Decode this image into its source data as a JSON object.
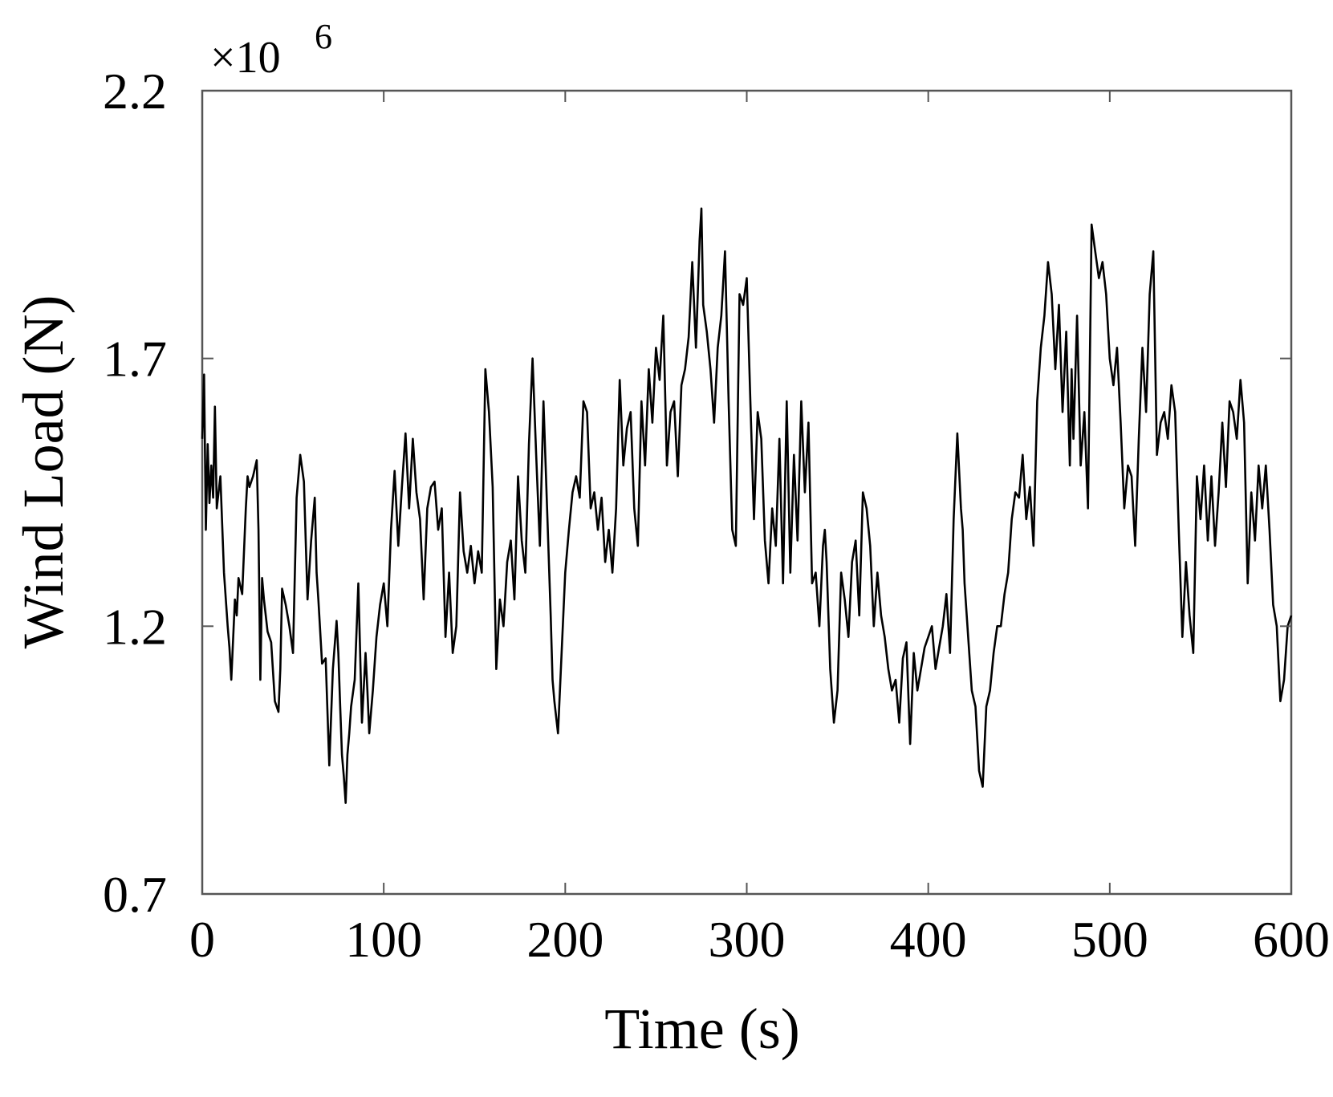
{
  "chart_data": {
    "type": "line",
    "title": "",
    "xlabel": "Time (s)",
    "ylabel": "Wind Load (N)",
    "exponent_label": "×10",
    "exponent_power": "6",
    "xlim": [
      0,
      600
    ],
    "ylim": [
      0.7,
      2.2
    ],
    "xticks": [
      0,
      100,
      200,
      300,
      400,
      500,
      600
    ],
    "xtick_labels": [
      "0",
      "100",
      "200",
      "300",
      "400",
      "500",
      "600"
    ],
    "yticks": [
      0.7,
      1.2,
      1.7,
      2.2
    ],
    "ytick_labels": [
      "0.7",
      "1.2",
      "1.7",
      "2.2"
    ],
    "grid": false,
    "colors": {
      "line": "#000000",
      "axes": "#555555"
    },
    "series": [
      {
        "x": [
          0,
          1,
          2,
          3,
          4,
          5,
          6,
          7,
          8,
          10,
          12,
          14,
          15,
          16,
          18,
          19,
          20,
          22,
          24,
          25,
          26,
          28,
          30,
          31,
          32,
          33,
          34,
          36,
          38,
          40,
          42,
          43,
          44,
          46,
          48,
          50,
          52,
          54,
          56,
          58,
          60,
          62,
          63,
          64,
          66,
          68,
          70,
          72,
          74,
          75,
          76,
          77,
          78,
          79,
          80,
          81,
          82,
          84,
          86,
          88,
          90,
          91,
          92,
          94,
          96,
          98,
          100,
          102,
          104,
          106,
          108,
          110,
          112,
          114,
          116,
          118,
          120,
          122,
          124,
          126,
          128,
          130,
          132,
          134,
          136,
          138,
          140,
          142,
          144,
          146,
          148,
          150,
          152,
          154,
          156,
          158,
          160,
          162,
          164,
          166,
          168,
          170,
          172,
          174,
          176,
          178,
          180,
          182,
          184,
          186,
          188,
          190,
          192,
          193,
          194,
          196,
          198,
          200,
          202,
          204,
          206,
          208,
          210,
          212,
          214,
          216,
          218,
          220,
          222,
          224,
          226,
          228,
          230,
          232,
          234,
          236,
          238,
          240,
          242,
          244,
          246,
          248,
          250,
          252,
          254,
          256,
          258,
          260,
          262,
          264,
          266,
          268,
          270,
          272,
          274,
          275,
          276,
          278,
          280,
          282,
          284,
          286,
          288,
          290,
          292,
          294,
          296,
          298,
          300,
          302,
          304,
          306,
          308,
          310,
          312,
          314,
          316,
          318,
          320,
          322,
          324,
          326,
          328,
          330,
          332,
          334,
          336,
          338,
          340,
          342,
          343,
          344,
          346,
          348,
          350,
          352,
          354,
          356,
          358,
          360,
          362,
          364,
          366,
          368,
          370,
          372,
          374,
          376,
          378,
          380,
          382,
          384,
          386,
          388,
          390,
          392,
          394,
          396,
          398,
          400,
          402,
          404,
          406,
          408,
          410,
          412,
          414,
          416,
          418,
          419,
          420,
          422,
          424,
          426,
          428,
          430,
          432,
          434,
          436,
          438,
          440,
          442,
          444,
          446,
          448,
          450,
          452,
          454,
          456,
          458,
          460,
          462,
          464,
          466,
          468,
          470,
          472,
          474,
          476,
          478,
          479,
          480,
          482,
          484,
          486,
          488,
          490,
          492,
          494,
          496,
          498,
          500,
          502,
          504,
          506,
          508,
          510,
          512,
          514,
          516,
          518,
          520,
          522,
          524,
          526,
          528,
          530,
          532,
          534,
          536,
          538,
          540,
          542,
          544,
          546,
          548,
          550,
          552,
          554,
          556,
          558,
          560,
          562,
          564,
          566,
          568,
          570,
          572,
          574,
          576,
          578,
          580,
          582,
          584,
          586,
          588,
          590,
          592,
          594,
          596,
          598,
          600
        ],
        "y": [
          1.55,
          1.67,
          1.38,
          1.54,
          1.43,
          1.5,
          1.44,
          1.61,
          1.42,
          1.48,
          1.3,
          1.2,
          1.16,
          1.1,
          1.25,
          1.22,
          1.29,
          1.26,
          1.42,
          1.48,
          1.46,
          1.48,
          1.51,
          1.38,
          1.1,
          1.29,
          1.25,
          1.19,
          1.17,
          1.06,
          1.04,
          1.12,
          1.27,
          1.24,
          1.2,
          1.15,
          1.44,
          1.52,
          1.47,
          1.25,
          1.36,
          1.44,
          1.3,
          1.25,
          1.13,
          1.14,
          0.94,
          1.12,
          1.21,
          1.15,
          1.05,
          0.96,
          0.92,
          0.87,
          0.96,
          1.0,
          1.05,
          1.1,
          1.28,
          1.02,
          1.15,
          1.08,
          1.0,
          1.08,
          1.18,
          1.24,
          1.28,
          1.2,
          1.38,
          1.49,
          1.35,
          1.46,
          1.56,
          1.42,
          1.55,
          1.45,
          1.4,
          1.25,
          1.42,
          1.46,
          1.47,
          1.38,
          1.42,
          1.18,
          1.3,
          1.15,
          1.2,
          1.45,
          1.34,
          1.3,
          1.35,
          1.28,
          1.34,
          1.3,
          1.68,
          1.6,
          1.46,
          1.12,
          1.25,
          1.2,
          1.32,
          1.36,
          1.25,
          1.48,
          1.36,
          1.3,
          1.54,
          1.7,
          1.52,
          1.35,
          1.62,
          1.42,
          1.22,
          1.1,
          1.06,
          1.0,
          1.15,
          1.3,
          1.38,
          1.45,
          1.48,
          1.44,
          1.62,
          1.6,
          1.42,
          1.45,
          1.38,
          1.44,
          1.32,
          1.38,
          1.3,
          1.42,
          1.66,
          1.5,
          1.57,
          1.6,
          1.42,
          1.35,
          1.62,
          1.5,
          1.68,
          1.58,
          1.72,
          1.66,
          1.78,
          1.5,
          1.6,
          1.62,
          1.48,
          1.65,
          1.68,
          1.74,
          1.88,
          1.72,
          1.92,
          1.98,
          1.8,
          1.75,
          1.68,
          1.58,
          1.72,
          1.78,
          1.9,
          1.62,
          1.38,
          1.35,
          1.82,
          1.8,
          1.85,
          1.62,
          1.4,
          1.6,
          1.55,
          1.36,
          1.28,
          1.42,
          1.35,
          1.55,
          1.28,
          1.62,
          1.3,
          1.52,
          1.36,
          1.62,
          1.45,
          1.58,
          1.28,
          1.3,
          1.2,
          1.35,
          1.38,
          1.32,
          1.12,
          1.02,
          1.08,
          1.3,
          1.25,
          1.18,
          1.32,
          1.36,
          1.22,
          1.45,
          1.42,
          1.35,
          1.2,
          1.3,
          1.22,
          1.18,
          1.12,
          1.08,
          1.1,
          1.02,
          1.14,
          1.17,
          0.98,
          1.15,
          1.08,
          1.12,
          1.16,
          1.18,
          1.2,
          1.12,
          1.16,
          1.2,
          1.26,
          1.15,
          1.4,
          1.56,
          1.42,
          1.38,
          1.28,
          1.18,
          1.08,
          1.05,
          0.93,
          0.9,
          1.05,
          1.08,
          1.15,
          1.2,
          1.2,
          1.26,
          1.3,
          1.4,
          1.45,
          1.44,
          1.52,
          1.4,
          1.46,
          1.35,
          1.62,
          1.72,
          1.78,
          1.88,
          1.82,
          1.68,
          1.8,
          1.6,
          1.75,
          1.5,
          1.68,
          1.55,
          1.78,
          1.5,
          1.6,
          1.42,
          1.95,
          1.9,
          1.85,
          1.88,
          1.82,
          1.7,
          1.65,
          1.72,
          1.58,
          1.42,
          1.5,
          1.48,
          1.35,
          1.55,
          1.72,
          1.6,
          1.82,
          1.9,
          1.52,
          1.58,
          1.6,
          1.55,
          1.65,
          1.6,
          1.38,
          1.18,
          1.32,
          1.22,
          1.15,
          1.48,
          1.4,
          1.5,
          1.36,
          1.48,
          1.35,
          1.45,
          1.58,
          1.46,
          1.62,
          1.6,
          1.55,
          1.66,
          1.58,
          1.28,
          1.45,
          1.36,
          1.5,
          1.42,
          1.5,
          1.38,
          1.24,
          1.2,
          1.06,
          1.1,
          1.2,
          1.22
        ]
      }
    ]
  }
}
